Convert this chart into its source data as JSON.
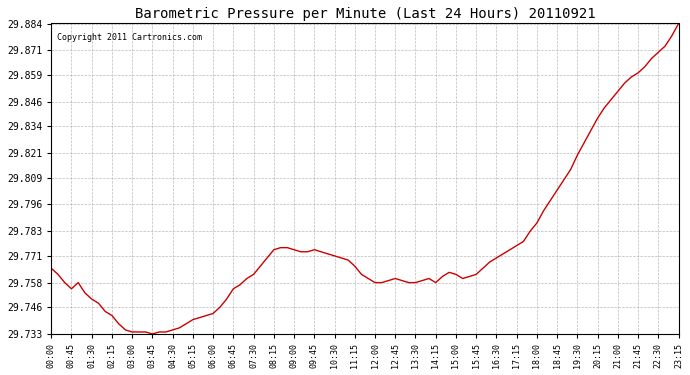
{
  "title": "Barometric Pressure per Minute (Last 24 Hours) 20110921",
  "copyright": "Copyright 2011 Cartronics.com",
  "line_color": "#cc0000",
  "background_color": "#ffffff",
  "plot_background": "#ffffff",
  "grid_color": "#aaaaaa",
  "yticks": [
    29.733,
    29.746,
    29.758,
    29.771,
    29.783,
    29.796,
    29.809,
    29.821,
    29.834,
    29.846,
    29.859,
    29.871,
    29.884
  ],
  "ylim": [
    29.733,
    29.884
  ],
  "xtick_labels": [
    "00:00",
    "00:45",
    "01:30",
    "02:15",
    "03:00",
    "03:45",
    "04:30",
    "05:15",
    "06:00",
    "06:45",
    "07:30",
    "08:15",
    "09:00",
    "09:45",
    "10:30",
    "11:15",
    "12:00",
    "12:45",
    "13:30",
    "14:15",
    "15:00",
    "15:45",
    "16:30",
    "17:15",
    "18:00",
    "18:45",
    "19:30",
    "20:15",
    "21:00",
    "21:45",
    "22:30",
    "23:15"
  ],
  "x_values": [
    0,
    45,
    90,
    135,
    180,
    225,
    270,
    315,
    360,
    405,
    450,
    495,
    540,
    585,
    630,
    675,
    720,
    765,
    810,
    855,
    900,
    945,
    990,
    1035,
    1080,
    1125,
    1170,
    1215,
    1260,
    1305,
    1350,
    1395
  ],
  "data_x": [
    0,
    15,
    30,
    45,
    60,
    75,
    90,
    105,
    120,
    135,
    150,
    165,
    180,
    195,
    210,
    225,
    240,
    255,
    270,
    285,
    300,
    315,
    330,
    345,
    360,
    375,
    390,
    405,
    420,
    435,
    450,
    465,
    480,
    495,
    510,
    525,
    540,
    555,
    570,
    585,
    600,
    615,
    630,
    645,
    660,
    675,
    690,
    705,
    720,
    735,
    750,
    765,
    780,
    795,
    810,
    825,
    840,
    855,
    870,
    885,
    900,
    915,
    930,
    945,
    960,
    975,
    990,
    1005,
    1020,
    1035,
    1050,
    1065,
    1080,
    1095,
    1110,
    1125,
    1140,
    1155,
    1170,
    1185,
    1200,
    1215,
    1230,
    1245,
    1260,
    1275,
    1290,
    1305,
    1320,
    1335,
    1350,
    1365,
    1380,
    1395
  ],
  "data_y": [
    29.765,
    29.762,
    29.758,
    29.755,
    29.758,
    29.753,
    29.75,
    29.748,
    29.744,
    29.742,
    29.738,
    29.735,
    29.734,
    29.734,
    29.734,
    29.733,
    29.734,
    29.734,
    29.735,
    29.736,
    29.738,
    29.74,
    29.741,
    29.742,
    29.743,
    29.746,
    29.75,
    29.755,
    29.757,
    29.76,
    29.762,
    29.766,
    29.77,
    29.774,
    29.775,
    29.775,
    29.774,
    29.773,
    29.773,
    29.774,
    29.773,
    29.772,
    29.771,
    29.77,
    29.769,
    29.766,
    29.762,
    29.76,
    29.758,
    29.758,
    29.759,
    29.76,
    29.759,
    29.758,
    29.758,
    29.759,
    29.76,
    29.758,
    29.761,
    29.763,
    29.762,
    29.76,
    29.761,
    29.762,
    29.765,
    29.768,
    29.77,
    29.772,
    29.774,
    29.776,
    29.778,
    29.783,
    29.787,
    29.793,
    29.798,
    29.803,
    29.808,
    29.813,
    29.82,
    29.826,
    29.832,
    29.838,
    29.843,
    29.847,
    29.851,
    29.855,
    29.858,
    29.86,
    29.863,
    29.867,
    29.87,
    29.873,
    29.878,
    29.884
  ]
}
